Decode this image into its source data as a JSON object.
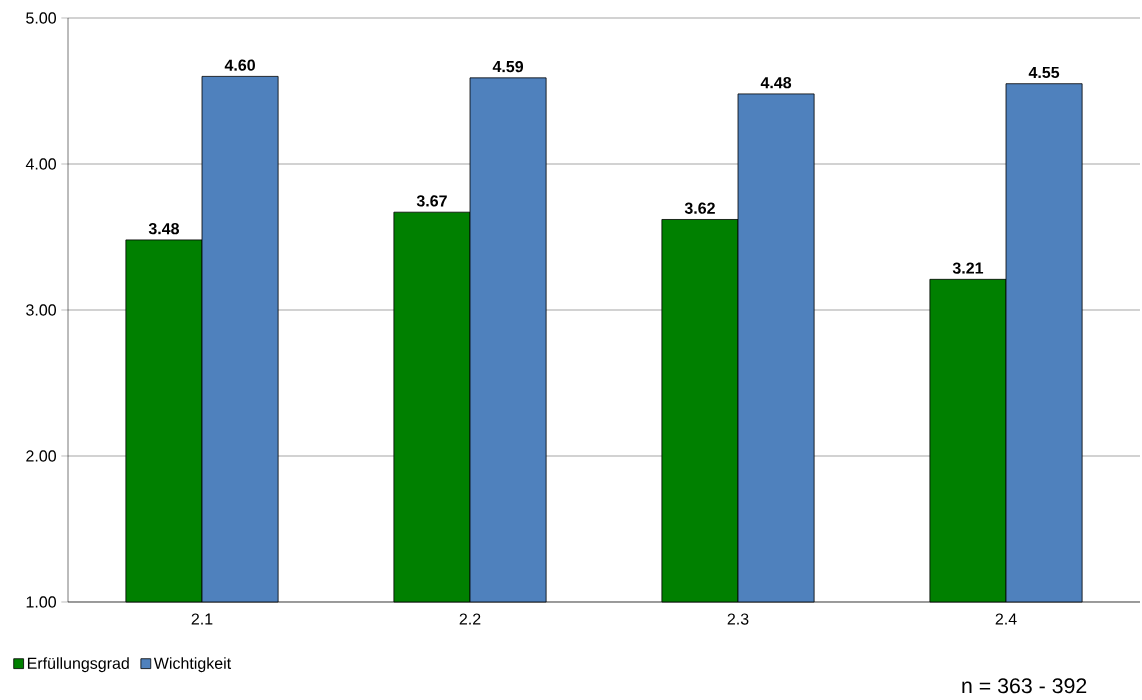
{
  "chart_data": {
    "type": "bar",
    "categories": [
      "2.1",
      "2.2",
      "2.3",
      "2.4"
    ],
    "series": [
      {
        "name": "Erfüllungsgrad",
        "color": "#008000",
        "values": [
          3.48,
          3.67,
          3.62,
          3.21
        ],
        "value_labels": [
          "3.48",
          "3.67",
          "3.62",
          "3.21"
        ]
      },
      {
        "name": "Wichtigkeit",
        "color": "#4f81bd",
        "values": [
          4.6,
          4.59,
          4.48,
          4.55
        ],
        "value_labels": [
          "4.60",
          "4.59",
          "4.48",
          "4.55"
        ]
      }
    ],
    "ylim": [
      1,
      5
    ],
    "yticks": [
      {
        "value": 1,
        "label": "1.00"
      },
      {
        "value": 2,
        "label": "2.00"
      },
      {
        "value": 3,
        "label": "3.00"
      },
      {
        "value": 4,
        "label": "4.00"
      },
      {
        "value": 5,
        "label": "5.00"
      }
    ],
    "grid": "y",
    "legend": "bottom left",
    "annotations": [
      "n = 363 - 392"
    ]
  }
}
